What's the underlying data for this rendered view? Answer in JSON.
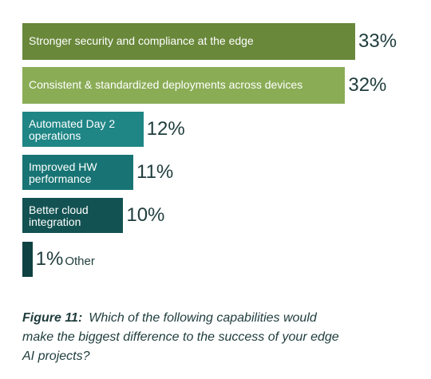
{
  "chart_data": {
    "type": "bar",
    "orientation": "horizontal",
    "categories": [
      "Stronger security and compliance at the edge",
      "Consistent & standardized deployments across devices",
      "Automated Day 2 operations",
      "Improved HW performance",
      "Better cloud integration",
      "Other"
    ],
    "values": [
      33,
      32,
      12,
      11,
      10,
      1
    ],
    "value_labels": [
      "33%",
      "32%",
      "12%",
      "11%",
      "10%",
      "1%"
    ],
    "colors": [
      "#69883a",
      "#8aac55",
      "#1f8585",
      "#187474",
      "#135252",
      "#0f4242"
    ],
    "unit": "%",
    "xlim": [
      0,
      33
    ],
    "grid": false
  },
  "caption": {
    "figure": "Figure 11:",
    "text": "Which of the following capabilities would make the biggest difference to the success of your edge AI projects?"
  },
  "colors": {
    "text": "#1f3c3c",
    "background": "#ffffff"
  }
}
